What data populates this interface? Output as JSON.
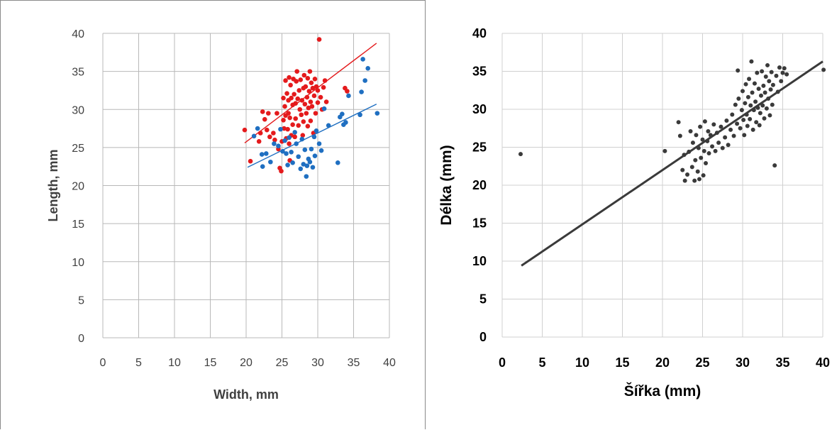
{
  "chart_data": [
    {
      "type": "scatter",
      "xlabel": "Width, mm",
      "ylabel": "Length, mm",
      "xlim": [
        0,
        40
      ],
      "ylim": [
        0,
        40
      ],
      "xticks": [
        "0",
        "5",
        "10",
        "15",
        "20",
        "25",
        "30",
        "35",
        "40"
      ],
      "yticks": [
        "0",
        "5",
        "10",
        "15",
        "20",
        "25",
        "30",
        "35",
        "40"
      ],
      "grid": true,
      "series": [
        {
          "color": "#e41a1c",
          "trendline": [
            [
              19.8,
              25.6
            ],
            [
              38.2,
              38.7
            ]
          ],
          "points": [
            [
              19.8,
              27.3
            ],
            [
              20.6,
              23.2
            ],
            [
              21.8,
              25.8
            ],
            [
              22,
              26.9
            ],
            [
              22.3,
              29.7
            ],
            [
              22.6,
              28.7
            ],
            [
              22.9,
              27.3
            ],
            [
              23.1,
              29.5
            ],
            [
              23.3,
              26.4
            ],
            [
              23.8,
              26.9
            ],
            [
              24,
              26
            ],
            [
              24.3,
              29.5
            ],
            [
              24.5,
              24.8
            ],
            [
              24.7,
              22.3
            ],
            [
              24.9,
              21.9
            ],
            [
              25,
              25.8
            ],
            [
              25.2,
              31.5
            ],
            [
              25.2,
              28.6
            ],
            [
              25.3,
              27.5
            ],
            [
              25.4,
              30.4
            ],
            [
              25.5,
              33.8
            ],
            [
              25.5,
              29.2
            ],
            [
              25.6,
              26.2
            ],
            [
              25.7,
              32.1
            ],
            [
              25.8,
              27.4
            ],
            [
              25.9,
              31.2
            ],
            [
              25.9,
              29.5
            ],
            [
              26,
              25.5
            ],
            [
              26,
              34.2
            ],
            [
              26.1,
              28.9
            ],
            [
              26.1,
              23.3
            ],
            [
              26.2,
              33.2
            ],
            [
              26.3,
              26.6
            ],
            [
              26.3,
              31.5
            ],
            [
              26.5,
              30.6
            ],
            [
              26.5,
              28
            ],
            [
              26.6,
              34
            ],
            [
              26.7,
              32
            ],
            [
              26.8,
              26.4
            ],
            [
              26.9,
              30.8
            ],
            [
              26.9,
              28.8
            ],
            [
              27,
              33.7
            ],
            [
              27.1,
              35
            ],
            [
              27.2,
              31.4
            ],
            [
              27.3,
              27.9
            ],
            [
              27.4,
              32.5
            ],
            [
              27.5,
              30
            ],
            [
              27.6,
              33.9
            ],
            [
              27.7,
              29.3
            ],
            [
              27.8,
              31.2
            ],
            [
              27.9,
              26.6
            ],
            [
              28,
              32.8
            ],
            [
              28,
              28.4
            ],
            [
              28.1,
              34.5
            ],
            [
              28.2,
              30.7
            ],
            [
              28.3,
              33
            ],
            [
              28.4,
              29.5
            ],
            [
              28.5,
              31.6
            ],
            [
              28.6,
              27.8
            ],
            [
              28.6,
              34.1
            ],
            [
              28.7,
              30.2
            ],
            [
              28.8,
              32.4
            ],
            [
              28.9,
              35
            ],
            [
              29,
              31
            ],
            [
              29,
              28.5
            ],
            [
              29.1,
              33.5
            ],
            [
              29.2,
              30.4
            ],
            [
              29.3,
              32.8
            ],
            [
              29.4,
              26.9
            ],
            [
              29.5,
              31.8
            ],
            [
              29.6,
              34
            ],
            [
              29.7,
              29.5
            ],
            [
              29.8,
              33
            ],
            [
              30,
              30.9
            ],
            [
              30,
              32.5
            ],
            [
              30.2,
              39.2
            ],
            [
              30.4,
              31.6
            ],
            [
              30.6,
              30
            ],
            [
              30.8,
              32.9
            ],
            [
              31,
              33.8
            ],
            [
              31.2,
              31
            ],
            [
              33.8,
              32.8
            ],
            [
              34.1,
              32.4
            ]
          ]
        },
        {
          "color": "#1f6fc1",
          "trendline": [
            [
              20.2,
              22.4
            ],
            [
              38.2,
              30.7
            ]
          ],
          "points": [
            [
              21.1,
              26.5
            ],
            [
              21.6,
              27.5
            ],
            [
              22.2,
              24.1
            ],
            [
              22.3,
              22.5
            ],
            [
              22.8,
              24.2
            ],
            [
              23.4,
              23.1
            ],
            [
              23.9,
              25.5
            ],
            [
              24.5,
              25.2
            ],
            [
              24.8,
              27.4
            ],
            [
              25.1,
              24.5
            ],
            [
              25.4,
              25.9
            ],
            [
              25.6,
              24.2
            ],
            [
              25.8,
              22.7
            ],
            [
              26,
              26.3
            ],
            [
              26.3,
              24.4
            ],
            [
              26.5,
              23
            ],
            [
              26.8,
              27
            ],
            [
              27,
              25.5
            ],
            [
              27.3,
              23.8
            ],
            [
              27.6,
              22.2
            ],
            [
              27.8,
              26.1
            ],
            [
              28,
              22.8
            ],
            [
              28.2,
              24.7
            ],
            [
              28.4,
              21.2
            ],
            [
              28.5,
              22.6
            ],
            [
              28.7,
              23.5
            ],
            [
              28.9,
              23.1
            ],
            [
              29.1,
              24.8
            ],
            [
              29.3,
              22.4
            ],
            [
              29.5,
              26.4
            ],
            [
              29.6,
              23.9
            ],
            [
              29.8,
              27.2
            ],
            [
              30.2,
              25.5
            ],
            [
              30.5,
              24.6
            ],
            [
              30.9,
              30.1
            ],
            [
              31.5,
              27.9
            ],
            [
              32.8,
              23
            ],
            [
              33.1,
              29
            ],
            [
              33.4,
              29.4
            ],
            [
              33.6,
              28
            ],
            [
              33.9,
              28.3
            ],
            [
              34.3,
              31.8
            ],
            [
              35.9,
              29.3
            ],
            [
              36.1,
              32.3
            ],
            [
              36.3,
              36.6
            ],
            [
              36.6,
              33.8
            ],
            [
              37,
              35.4
            ],
            [
              38.3,
              29.5
            ]
          ]
        }
      ]
    },
    {
      "type": "scatter",
      "xlabel": "Šířka (mm)",
      "ylabel": "Délka (mm)",
      "xlim": [
        0,
        40
      ],
      "ylim": [
        0,
        40
      ],
      "xticks": [
        "0",
        "5",
        "10",
        "15",
        "20",
        "25",
        "30",
        "35",
        "40"
      ],
      "yticks": [
        "0",
        "5",
        "10",
        "15",
        "20",
        "25",
        "30",
        "35",
        "40"
      ],
      "grid": true,
      "series": [
        {
          "color": "#3a3a3a",
          "trendline": [
            [
              2.4,
              9.4
            ],
            [
              40,
              36.3
            ]
          ],
          "points": [
            [
              2.3,
              24.1
            ],
            [
              20.3,
              24.5
            ],
            [
              22,
              28.3
            ],
            [
              22.2,
              26.5
            ],
            [
              22.5,
              22
            ],
            [
              22.7,
              24
            ],
            [
              22.8,
              20.6
            ],
            [
              23.1,
              21.4
            ],
            [
              23.3,
              24.4
            ],
            [
              23.5,
              27.1
            ],
            [
              23.7,
              22.4
            ],
            [
              23.8,
              25.6
            ],
            [
              24,
              20.6
            ],
            [
              24.1,
              23.3
            ],
            [
              24.2,
              26.6
            ],
            [
              24.4,
              21.8
            ],
            [
              24.5,
              24.9
            ],
            [
              24.6,
              20.8
            ],
            [
              24.7,
              27.7
            ],
            [
              24.8,
              23.6
            ],
            [
              25,
              26
            ],
            [
              25.1,
              21.3
            ],
            [
              25.2,
              24.5
            ],
            [
              25.3,
              28.4
            ],
            [
              25.4,
              22.9
            ],
            [
              25.6,
              25.8
            ],
            [
              25.7,
              27.1
            ],
            [
              25.8,
              24.2
            ],
            [
              26,
              26.6
            ],
            [
              26.2,
              25.1
            ],
            [
              26.4,
              28
            ],
            [
              26.6,
              24.5
            ],
            [
              26.8,
              26.9
            ],
            [
              27,
              25.6
            ],
            [
              27.3,
              27.7
            ],
            [
              27.5,
              24.9
            ],
            [
              27.8,
              26.3
            ],
            [
              28,
              28.5
            ],
            [
              28.2,
              25.3
            ],
            [
              28.5,
              27.3
            ],
            [
              28.7,
              29.3
            ],
            [
              28.9,
              26.5
            ],
            [
              29.1,
              30.6
            ],
            [
              29.3,
              28.1
            ],
            [
              29.4,
              35.1
            ],
            [
              29.5,
              31.4
            ],
            [
              29.7,
              27.5
            ],
            [
              29.9,
              29.9
            ],
            [
              30,
              32.4
            ],
            [
              30.1,
              28.6
            ],
            [
              30.2,
              26.6
            ],
            [
              30.3,
              30.8
            ],
            [
              30.4,
              33.3
            ],
            [
              30.5,
              29.3
            ],
            [
              30.6,
              27.8
            ],
            [
              30.7,
              31.6
            ],
            [
              30.8,
              34
            ],
            [
              30.9,
              28.7
            ],
            [
              31,
              30.5
            ],
            [
              31.1,
              36.3
            ],
            [
              31.2,
              32.2
            ],
            [
              31.3,
              27.3
            ],
            [
              31.4,
              29.9
            ],
            [
              31.5,
              33.4
            ],
            [
              31.6,
              31
            ],
            [
              31.7,
              28.3
            ],
            [
              31.8,
              34.8
            ],
            [
              31.9,
              30.2
            ],
            [
              32,
              32.7
            ],
            [
              32.1,
              27.9
            ],
            [
              32.2,
              29.5
            ],
            [
              32.3,
              31.8
            ],
            [
              32.4,
              35
            ],
            [
              32.5,
              30.5
            ],
            [
              32.6,
              33.1
            ],
            [
              32.7,
              28.8
            ],
            [
              32.8,
              32.2
            ],
            [
              32.9,
              34.3
            ],
            [
              33,
              30.1
            ],
            [
              33.1,
              35.8
            ],
            [
              33.2,
              31.4
            ],
            [
              33.3,
              33.7
            ],
            [
              33.4,
              29.2
            ],
            [
              33.5,
              32.6
            ],
            [
              33.6,
              34.9
            ],
            [
              33.7,
              30.6
            ],
            [
              33.8,
              33.2
            ],
            [
              34,
              22.6
            ],
            [
              34.2,
              34.4
            ],
            [
              34.4,
              32.3
            ],
            [
              34.6,
              35.5
            ],
            [
              34.8,
              33.7
            ],
            [
              35,
              34.8
            ],
            [
              35.2,
              35.4
            ],
            [
              35.5,
              34.6
            ],
            [
              40.1,
              35.2
            ]
          ]
        }
      ]
    }
  ]
}
